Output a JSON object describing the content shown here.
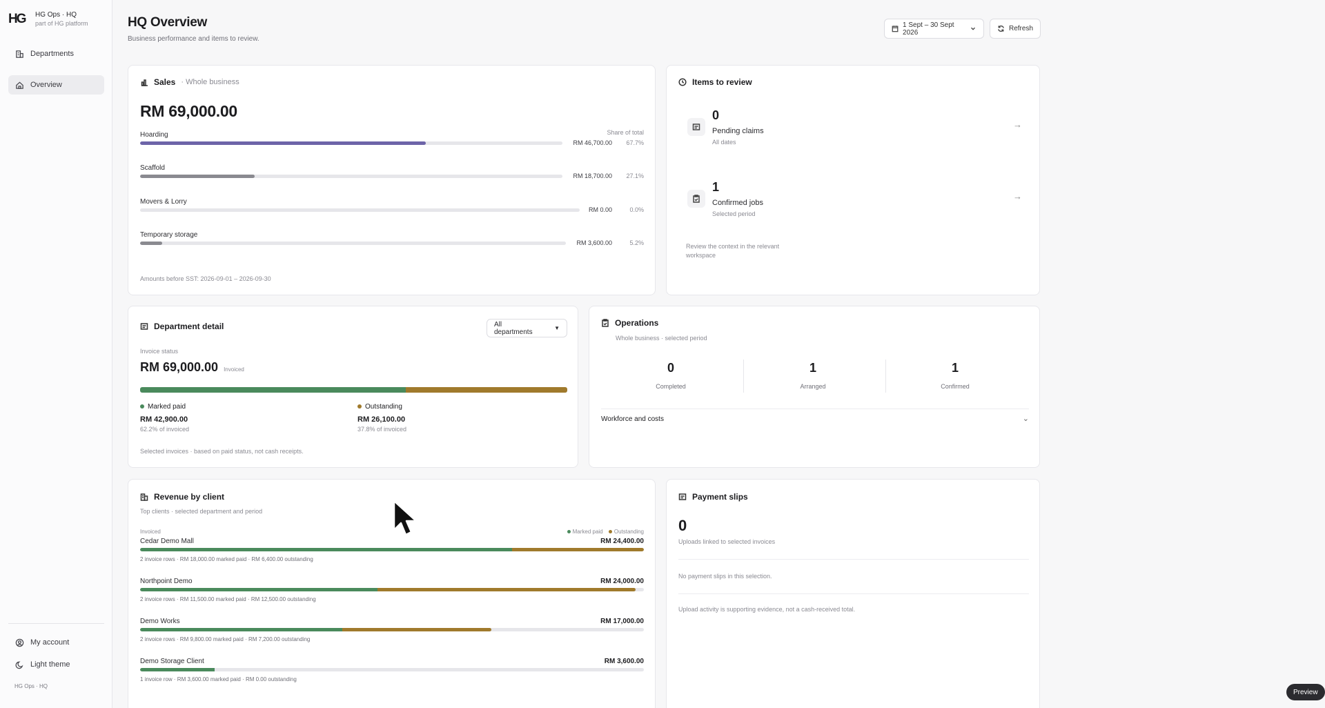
{
  "brand": {
    "logo": "HG",
    "title": "HG Ops · HQ",
    "subtitle": "part of HG platform"
  },
  "sidebar": {
    "items": [
      {
        "label": "Departments",
        "icon": "building-icon",
        "active": false
      },
      {
        "label": "Overview",
        "icon": "home-icon",
        "active": true
      }
    ],
    "bottom": [
      {
        "label": "My account",
        "icon": "user-circle-icon"
      },
      {
        "label": "Light theme",
        "icon": "moon-icon"
      }
    ],
    "footer": "HG Ops · HQ"
  },
  "header": {
    "title": "HQ Overview",
    "subtitle": "Business performance and items to review.",
    "date_range": "1 Sept – 30 Sept 2026",
    "refresh_label": "Refresh"
  },
  "sales": {
    "title": "Sales",
    "scope": "· Whole business",
    "total": "RM 69,000.00",
    "share_header": "Share of total",
    "rows": [
      {
        "label": "Hoarding",
        "amount": "RM 46,700.00",
        "pct": "67.7%",
        "fill": 0.677,
        "color": "#6d64a8"
      },
      {
        "label": "Scaffold",
        "amount": "RM 18,700.00",
        "pct": "27.1%",
        "fill": 0.271,
        "color": "#8a8a90"
      },
      {
        "label": "Movers & Lorry",
        "amount": "RM 0.00",
        "pct": "0.0%",
        "fill": 0,
        "color": "#8a8a90"
      },
      {
        "label": "Temporary storage",
        "amount": "RM 3,600.00",
        "pct": "5.2%",
        "fill": 0.052,
        "color": "#8a8a90"
      }
    ],
    "footnote": "Amounts before SST: 2026-09-01 – 2026-09-30"
  },
  "review": {
    "title": "Items to review",
    "items": [
      {
        "count": "0",
        "label": "Pending claims",
        "sub": "All dates",
        "icon": "receipt-icon"
      },
      {
        "count": "1",
        "label": "Confirmed jobs",
        "sub": "Selected period",
        "icon": "clipboard-icon"
      }
    ],
    "note_line1": "Review the context in the relevant",
    "note_line2": "workspace"
  },
  "department": {
    "title": "Department detail",
    "select_value": "All departments",
    "invoice_status_label": "Invoice status",
    "total": "RM 69,000.00",
    "total_suffix": "Invoiced",
    "paid_fraction": 0.622,
    "paid": {
      "label": "Marked paid",
      "amount": "RM 42,900.00",
      "pct": "62.2% of invoiced",
      "color": "#4a8a5c"
    },
    "outstanding": {
      "label": "Outstanding",
      "amount": "RM 26,100.00",
      "pct": "37.8% of invoiced",
      "color": "#a07a2c"
    },
    "footnote": "Selected invoices · based on paid status, not cash receipts."
  },
  "operations": {
    "title": "Operations",
    "subtitle": "Whole business · selected period",
    "stats": [
      {
        "value": "0",
        "label": "Completed"
      },
      {
        "value": "1",
        "label": "Arranged"
      },
      {
        "value": "1",
        "label": "Confirmed"
      }
    ],
    "expand_label": "Workforce and costs"
  },
  "clients": {
    "title": "Revenue by client",
    "subtitle": "Top clients · selected department and period",
    "col_label": "Invoiced",
    "legend": [
      {
        "label": "Marked paid",
        "color": "#4a8a5c"
      },
      {
        "label": "Outstanding",
        "color": "#a07a2c"
      }
    ],
    "rows": [
      {
        "name": "Cedar Demo Mall",
        "amount": "RM 24,400.00",
        "paid": 0.738,
        "outstanding": 0.262,
        "total_fill": 1.0,
        "note": "2 invoice rows · RM 18,000.00 marked paid · RM 6,400.00 outstanding"
      },
      {
        "name": "Northpoint Demo",
        "amount": "RM 24,000.00",
        "paid": 0.479,
        "outstanding": 0.521,
        "total_fill": 0.984,
        "note": "2 invoice rows · RM 11,500.00 marked paid · RM 12,500.00 outstanding"
      },
      {
        "name": "Demo Works",
        "amount": "RM 17,000.00",
        "paid": 0.576,
        "outstanding": 0.424,
        "total_fill": 0.697,
        "note": "2 invoice rows · RM 9,800.00 marked paid · RM 7,200.00 outstanding"
      },
      {
        "name": "Demo Storage Client",
        "amount": "RM 3,600.00",
        "paid": 1.0,
        "outstanding": 0,
        "total_fill": 0.148,
        "note": "1 invoice row · RM 3,600.00 marked paid · RM 0.00 outstanding"
      }
    ]
  },
  "slips": {
    "title": "Payment slips",
    "count": "0",
    "count_label": "Uploads linked to selected invoices",
    "empty": "No payment slips in this selection.",
    "footnote": "Upload activity is supporting evidence, not a cash-received total."
  },
  "preview_label": "Preview"
}
